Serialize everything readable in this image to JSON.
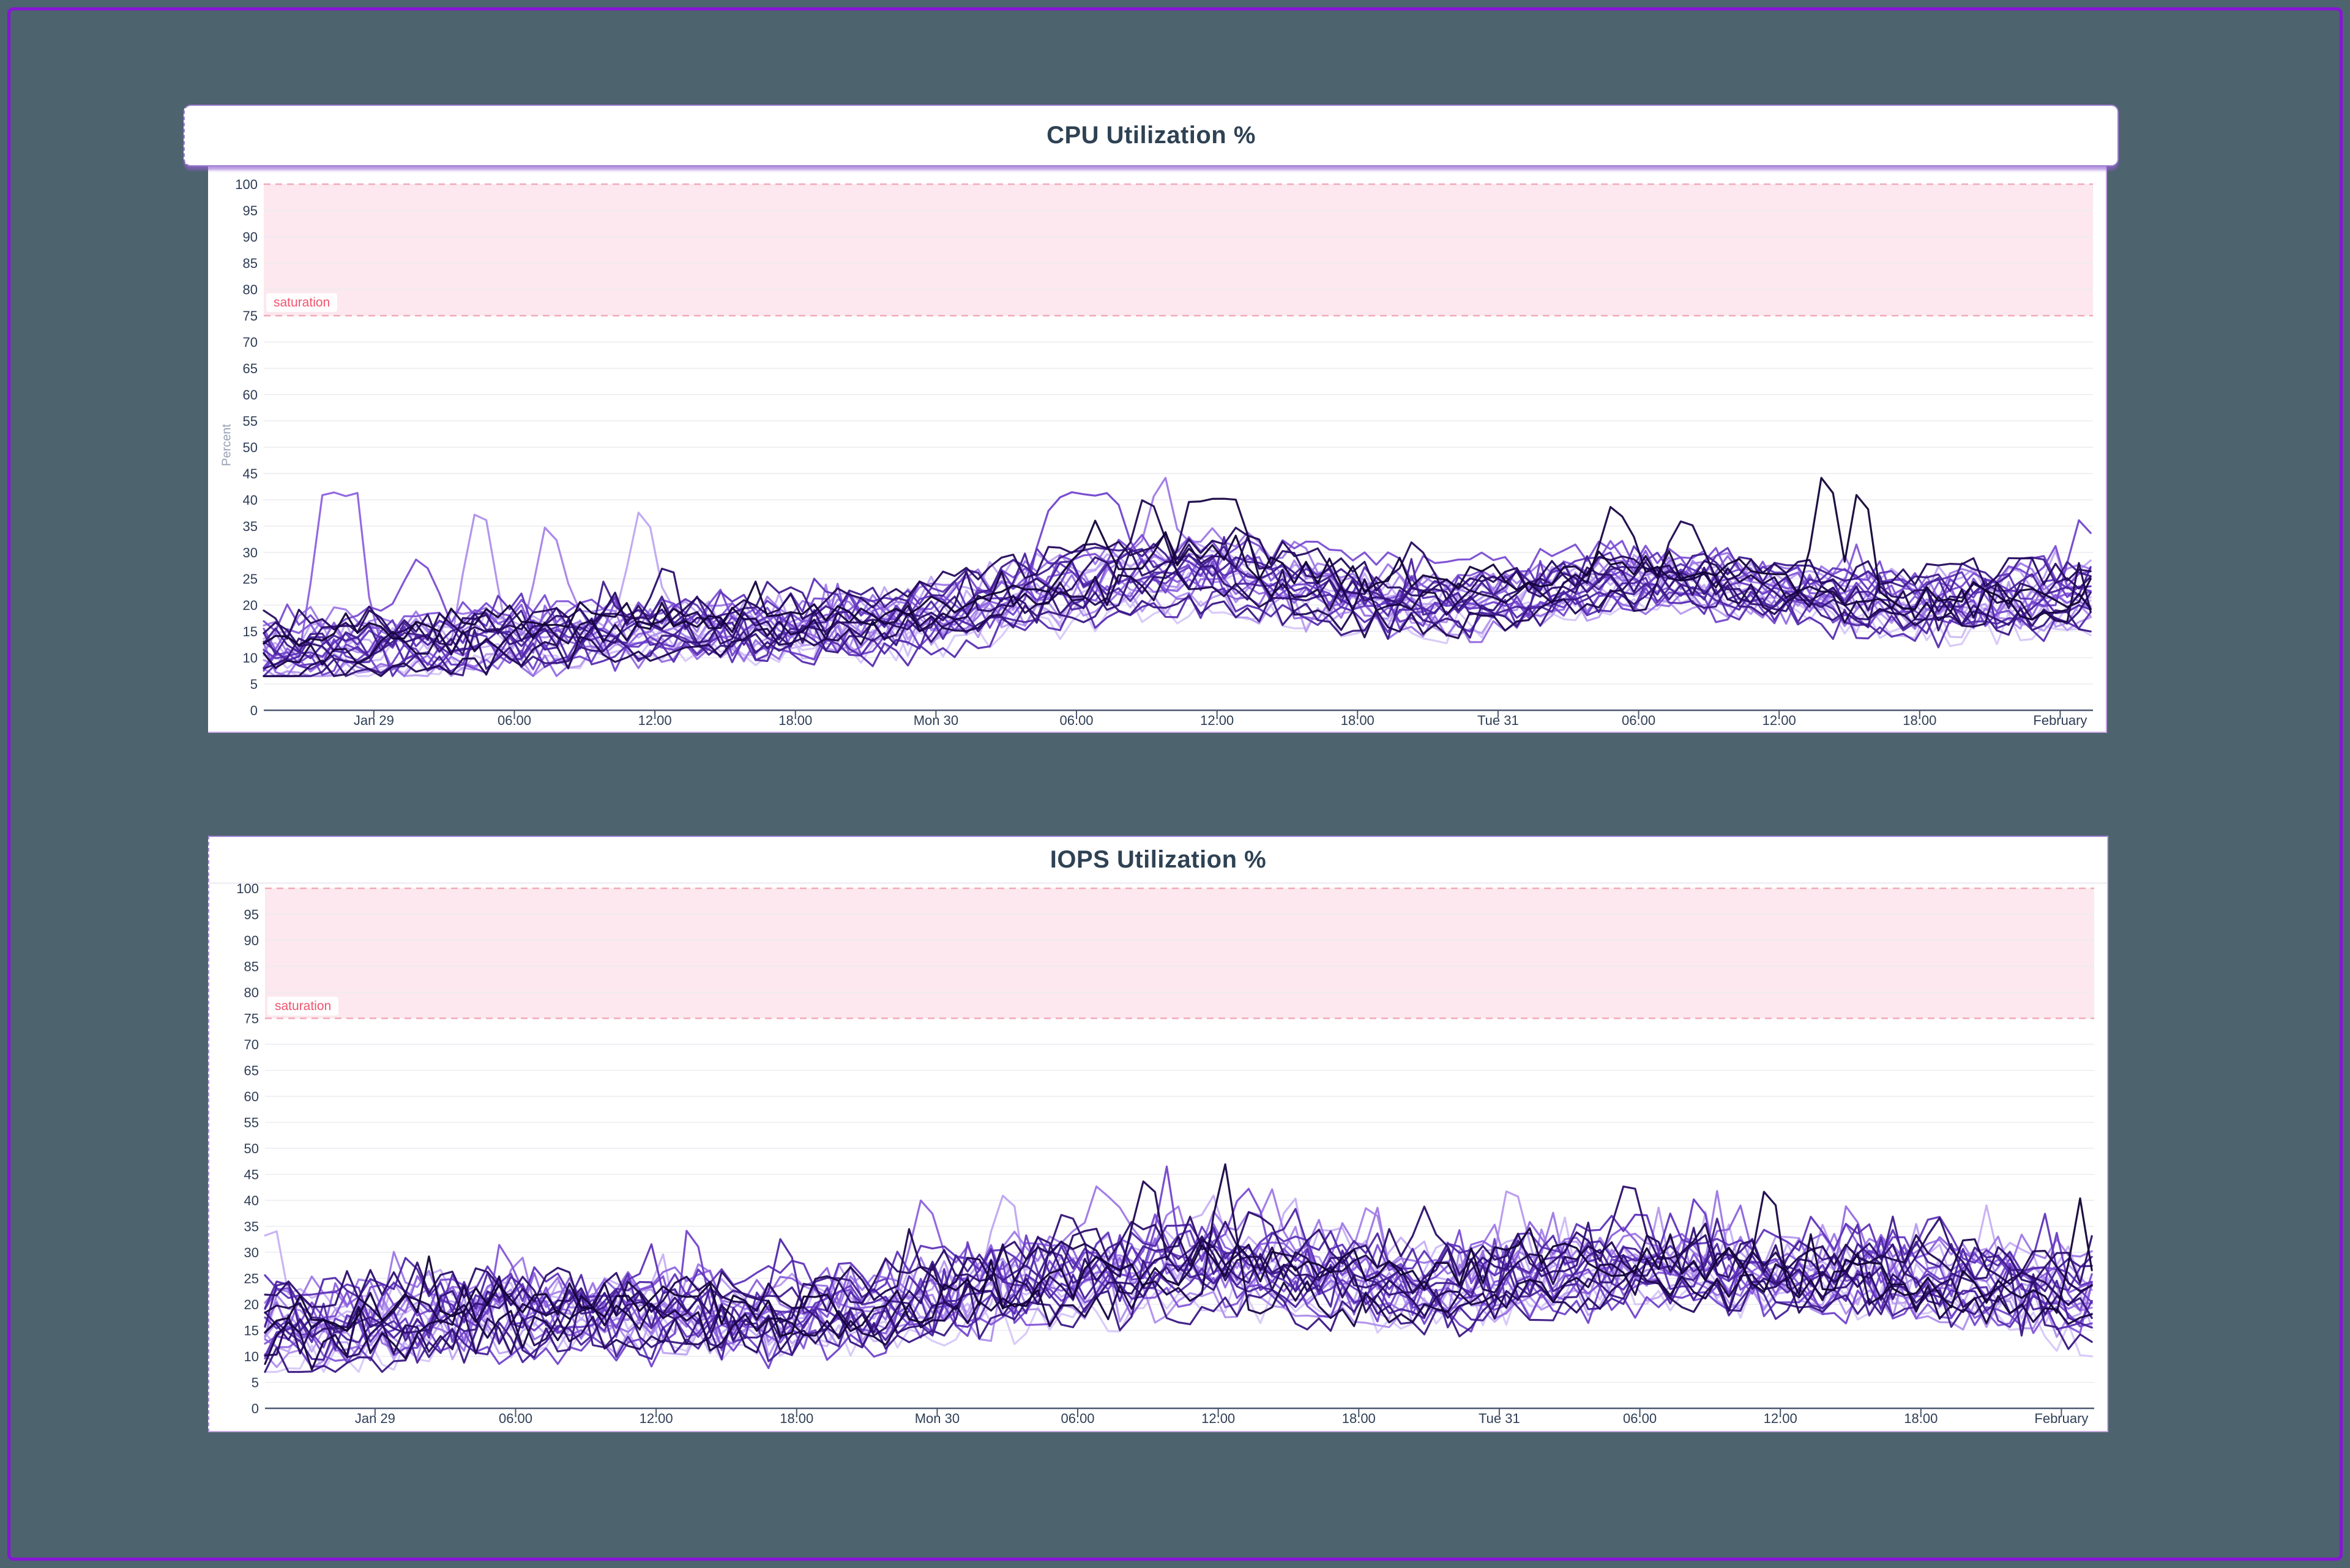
{
  "frame": {
    "background": "#4d636e",
    "border_color": "#8815d6"
  },
  "cpu_panel": {
    "title": "CPU Utilization %",
    "y_axis_label": "Percent",
    "saturation_label": "saturation",
    "chart_data": {
      "type": "line",
      "title": "CPU Utilization %",
      "ylabel": "Percent",
      "ylim": [
        0,
        100
      ],
      "y_ticks": [
        100,
        95,
        90,
        85,
        80,
        75,
        70,
        65,
        60,
        55,
        50,
        45,
        40,
        35,
        30,
        25,
        20,
        15,
        10,
        5,
        0
      ],
      "x_domain_hours": [
        -4.7,
        73.4
      ],
      "x_ticks": [
        {
          "label": "Jan 29",
          "h": 0
        },
        {
          "label": "06:00",
          "h": 6
        },
        {
          "label": "12:00",
          "h": 12
        },
        {
          "label": "18:00",
          "h": 18
        },
        {
          "label": "Mon 30",
          "h": 24
        },
        {
          "label": "06:00",
          "h": 30
        },
        {
          "label": "12:00",
          "h": 36
        },
        {
          "label": "18:00",
          "h": 42
        },
        {
          "label": "Tue 31",
          "h": 48
        },
        {
          "label": "06:00",
          "h": 54
        },
        {
          "label": "12:00",
          "h": 60
        },
        {
          "label": "18:00",
          "h": 66
        },
        {
          "label": "February",
          "h": 72
        }
      ],
      "grid": "horizontal",
      "legend": "none",
      "saturation_band": {
        "from": 75,
        "to": 100,
        "label": "saturation",
        "fill": "#fce8ee",
        "dash_color": "#f2a9ba"
      },
      "series_count": 26,
      "seed": 11,
      "point_step_hours": 0.5,
      "trend_mean": [
        [
          -4.7,
          11
        ],
        [
          0,
          12
        ],
        [
          6,
          13.5
        ],
        [
          12,
          15
        ],
        [
          18,
          15.5
        ],
        [
          22,
          16.5
        ],
        [
          24,
          18
        ],
        [
          27,
          21
        ],
        [
          30,
          23.5
        ],
        [
          33,
          25.5
        ],
        [
          36,
          26
        ],
        [
          39,
          24
        ],
        [
          42,
          21.5
        ],
        [
          45,
          20
        ],
        [
          48,
          21
        ],
        [
          51,
          23
        ],
        [
          54,
          25
        ],
        [
          57,
          24
        ],
        [
          60,
          22.5
        ],
        [
          63,
          21
        ],
        [
          66,
          20
        ],
        [
          69,
          20.5
        ],
        [
          72,
          21
        ],
        [
          73.4,
          22
        ]
      ],
      "spread": 5,
      "noise": 3.0,
      "wobble": 1.6,
      "bump_chance": 0.05,
      "bump_max": 6,
      "min_value": 6.5,
      "colors": [
        "#d7c8f8",
        "#cfbcf6",
        "#c7b0f4",
        "#bfa5f1",
        "#b79aee",
        "#af8fec",
        "#a683e9",
        "#9e78e6",
        "#966de2",
        "#8d62de",
        "#8457d9",
        "#7b4dd3",
        "#7244cc",
        "#693cc4",
        "#6035bb",
        "#582eb1",
        "#5028a6",
        "#48229b",
        "#411d8f",
        "#3a1883",
        "#331377",
        "#2c0f6a",
        "#250b5d",
        "#1f0850",
        "#180543",
        "#120336"
      ],
      "spikes": [
        {
          "s": 9,
          "h": -1.5,
          "v": 41,
          "w": 1.6,
          "flat": true
        },
        {
          "s": 11,
          "h": 2.0,
          "v": 31,
          "w": 1.0
        },
        {
          "s": 5,
          "h": 4.5,
          "v": 42,
          "w": 1.3
        },
        {
          "s": 6,
          "h": 7.5,
          "v": 38,
          "w": 1.1
        },
        {
          "s": 3,
          "h": 11.5,
          "v": 43,
          "w": 1.0
        },
        {
          "s": 21,
          "h": 12.5,
          "v": 30,
          "w": 0.9
        },
        {
          "s": 12,
          "h": 30.3,
          "v": 41,
          "w": 2.6,
          "flat": true
        },
        {
          "s": 25,
          "h": 30.8,
          "v": 36,
          "w": 1.2
        },
        {
          "s": 23,
          "h": 33.0,
          "v": 42,
          "w": 1.6
        },
        {
          "s": 7,
          "h": 33.6,
          "v": 48,
          "w": 0.8
        },
        {
          "s": 24,
          "h": 35.8,
          "v": 40,
          "w": 2.0,
          "flat": true
        },
        {
          "s": 22,
          "h": 44.5,
          "v": 33,
          "w": 1.0
        },
        {
          "s": 24,
          "h": 53.0,
          "v": 41,
          "w": 1.2
        },
        {
          "s": 23,
          "h": 56.0,
          "v": 38,
          "w": 1.6
        },
        {
          "s": 25,
          "h": 62.0,
          "v": 50,
          "w": 0.9
        },
        {
          "s": 25,
          "h": 63.5,
          "v": 47,
          "w": 0.8
        },
        {
          "s": 13,
          "h": 71.0,
          "v": 31,
          "w": 1.0
        },
        {
          "s": 12,
          "h": 73.0,
          "v": 39,
          "w": 1.2
        }
      ]
    }
  },
  "iops_panel": {
    "title": "IOPS Utilization %",
    "saturation_label": "saturation",
    "chart_data": {
      "type": "line",
      "title": "IOPS Utilization %",
      "ylabel": "",
      "ylim": [
        0,
        100
      ],
      "y_ticks": [
        100,
        95,
        90,
        85,
        80,
        75,
        70,
        65,
        60,
        55,
        50,
        45,
        40,
        35,
        30,
        25,
        20,
        15,
        10,
        5,
        0
      ],
      "x_domain_hours": [
        -4.7,
        73.4
      ],
      "x_ticks": [
        {
          "label": "Jan 29",
          "h": 0
        },
        {
          "label": "06:00",
          "h": 6
        },
        {
          "label": "12:00",
          "h": 12
        },
        {
          "label": "18:00",
          "h": 18
        },
        {
          "label": "Mon 30",
          "h": 24
        },
        {
          "label": "06:00",
          "h": 30
        },
        {
          "label": "12:00",
          "h": 36
        },
        {
          "label": "18:00",
          "h": 42
        },
        {
          "label": "Tue 31",
          "h": 48
        },
        {
          "label": "06:00",
          "h": 54
        },
        {
          "label": "12:00",
          "h": 60
        },
        {
          "label": "18:00",
          "h": 66
        },
        {
          "label": "February",
          "h": 72
        }
      ],
      "grid": "horizontal",
      "legend": "none",
      "saturation_band": {
        "from": 75,
        "to": 100,
        "label": "saturation",
        "fill": "#fce8ee",
        "dash_color": "#f2a9ba"
      },
      "series_count": 26,
      "seed": 29,
      "point_step_hours": 0.5,
      "trend_mean": [
        [
          -4.7,
          15.5
        ],
        [
          0,
          16
        ],
        [
          3,
          17.5
        ],
        [
          6,
          18
        ],
        [
          9,
          18.5
        ],
        [
          12,
          18
        ],
        [
          15,
          17
        ],
        [
          18,
          17.5
        ],
        [
          21,
          19
        ],
        [
          24,
          21
        ],
        [
          27,
          23.5
        ],
        [
          30,
          25
        ],
        [
          33,
          26.5
        ],
        [
          36,
          27.5
        ],
        [
          39,
          26
        ],
        [
          42,
          24.5
        ],
        [
          45,
          23
        ],
        [
          48,
          24
        ],
        [
          51,
          25.5
        ],
        [
          54,
          27
        ],
        [
          57,
          26
        ],
        [
          60,
          25
        ],
        [
          63,
          26
        ],
        [
          66,
          24.5
        ],
        [
          69,
          23.5
        ],
        [
          72,
          22
        ],
        [
          73.4,
          21
        ]
      ],
      "spread": 6,
      "noise": 4.0,
      "wobble": 2.0,
      "bump_chance": 0.09,
      "bump_max": 8,
      "min_value": 7,
      "colors": [
        "#d7c8f8",
        "#cfbcf6",
        "#c7b0f4",
        "#bfa5f1",
        "#b79aee",
        "#af8fec",
        "#a683e9",
        "#9e78e6",
        "#966de2",
        "#8d62de",
        "#8457d9",
        "#7b4dd3",
        "#7244cc",
        "#693cc4",
        "#6035bb",
        "#582eb1",
        "#5028a6",
        "#48229b",
        "#411d8f",
        "#3a1883",
        "#331377",
        "#2c0f6a",
        "#250b5d",
        "#1f0850",
        "#180543",
        "#120336"
      ],
      "spikes": [
        {
          "s": 2,
          "h": -4.4,
          "v": 37,
          "w": 0.9
        },
        {
          "s": 10,
          "h": 5.5,
          "v": 35,
          "w": 0.9
        },
        {
          "s": 12,
          "h": 13.5,
          "v": 40,
          "w": 0.9
        },
        {
          "s": 16,
          "h": 17.5,
          "v": 36,
          "w": 0.9
        },
        {
          "s": 9,
          "h": 23.5,
          "v": 44,
          "w": 0.9
        },
        {
          "s": 3,
          "h": 27.0,
          "v": 46,
          "w": 1.0
        },
        {
          "s": 20,
          "h": 29.5,
          "v": 40,
          "w": 1.2
        },
        {
          "s": 7,
          "h": 31.0,
          "v": 44,
          "w": 1.0
        },
        {
          "s": 23,
          "h": 33.0,
          "v": 48,
          "w": 0.9
        },
        {
          "s": 12,
          "h": 33.8,
          "v": 46,
          "w": 0.8
        },
        {
          "s": 24,
          "h": 36.2,
          "v": 50,
          "w": 0.9
        },
        {
          "s": 11,
          "h": 37.2,
          "v": 45,
          "w": 0.8
        },
        {
          "s": 6,
          "h": 42.5,
          "v": 41,
          "w": 0.9
        },
        {
          "s": 4,
          "h": 48.5,
          "v": 46,
          "w": 0.9
        },
        {
          "s": 21,
          "h": 53.5,
          "v": 47,
          "w": 1.0
        },
        {
          "s": 13,
          "h": 56.5,
          "v": 44,
          "w": 0.9
        },
        {
          "s": 24,
          "h": 59.5,
          "v": 46,
          "w": 0.9
        },
        {
          "s": 8,
          "h": 63.0,
          "v": 42,
          "w": 0.9
        },
        {
          "s": 14,
          "h": 66.5,
          "v": 38,
          "w": 0.9
        },
        {
          "s": 25,
          "h": 72.8,
          "v": 40,
          "w": 0.7
        }
      ]
    }
  }
}
